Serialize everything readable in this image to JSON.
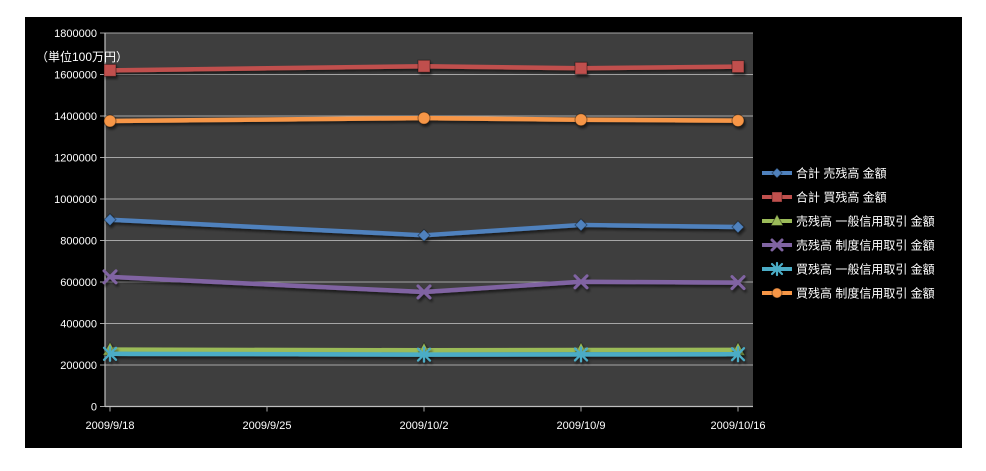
{
  "chart_data": {
    "type": "line",
    "unit_label": "（単位100万円）",
    "x_tick_labels": [
      "2009/9/18",
      "2009/9/25",
      "2009/10/2",
      "2009/10/9",
      "2009/10/16"
    ],
    "data_tick_indices": [
      0,
      2,
      3,
      4
    ],
    "y_tick_labels": [
      "0",
      "200000",
      "400000",
      "600000",
      "800000",
      "1000000",
      "1200000",
      "1400000",
      "1600000",
      "1800000"
    ],
    "y_ticks": [
      0,
      200000,
      400000,
      600000,
      800000,
      1000000,
      1200000,
      1400000,
      1600000,
      1800000
    ],
    "ylim": [
      0,
      1800000
    ],
    "grid": true,
    "legend_position": "right",
    "colors": {
      "outer_background": "#000000",
      "plot_background": "#3e3e3e",
      "gridline": "#a6a6a6",
      "axis": "#bfbfbf",
      "text": "#ffffff"
    },
    "series": [
      {
        "name": "合計 売残高 金額",
        "color": "#4F81BD",
        "marker": "diamond",
        "values": [
          900000,
          825000,
          875000,
          865000
        ]
      },
      {
        "name": "合計 買残高 金額",
        "color": "#C0504D",
        "marker": "square",
        "values": [
          1620000,
          1640000,
          1630000,
          1638000
        ]
      },
      {
        "name": "売残高 一般信用取引 金額",
        "color": "#9BBB59",
        "marker": "triangle",
        "values": [
          274000,
          271000,
          272000,
          273000
        ]
      },
      {
        "name": "売残高 制度信用取引 金額",
        "color": "#8064A2",
        "marker": "x",
        "values": [
          625000,
          552000,
          601000,
          597000
        ]
      },
      {
        "name": "買残高 一般信用取引 金額",
        "color": "#4BACC6",
        "marker": "asterisk",
        "values": [
          254000,
          250000,
          251000,
          252000
        ]
      },
      {
        "name": "買残高 制度信用取引 金額",
        "color": "#F79646",
        "marker": "circle",
        "values": [
          1376000,
          1390000,
          1382000,
          1378000
        ]
      }
    ]
  }
}
